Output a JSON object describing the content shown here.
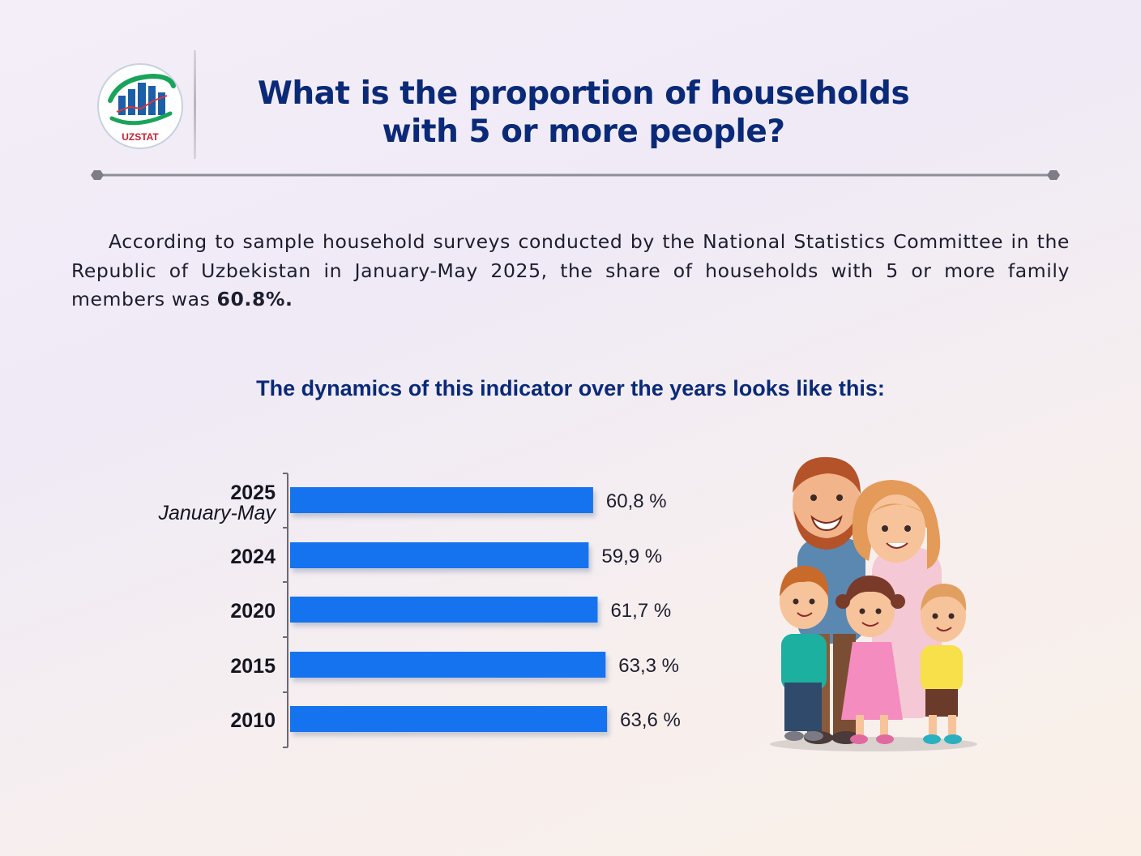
{
  "logo": {
    "text": "UZSTAT",
    "icon": "uzstat-logo-icon"
  },
  "title": {
    "line1": "What is the proportion of households",
    "line2": "with 5 or more people?"
  },
  "intro": {
    "text": "According to sample household surveys conducted by the National Statistics Committee in the Republic of Uzbekistan in January-May 2025, the share of households with 5 or more family members was ",
    "highlight": "60.8%."
  },
  "subheading": "The dynamics of this indicator over the years looks like this:",
  "colors": {
    "accent": "#0a2a78",
    "bar": "#1273ef"
  },
  "illustration": {
    "icon": "family-illustration-icon"
  },
  "chart_data": {
    "type": "bar",
    "orientation": "horizontal",
    "categories": [
      "2025",
      "2024",
      "2020",
      "2015",
      "2010"
    ],
    "category_sublabels": [
      "January-May",
      "",
      "",
      "",
      ""
    ],
    "values": [
      60.8,
      59.9,
      61.7,
      63.3,
      63.6
    ],
    "value_labels": [
      "60,8 %",
      "59,9 %",
      "61,7 %",
      "63,3 %",
      "63,6 %"
    ],
    "title": "",
    "xlabel": "",
    "ylabel": "",
    "grid": false,
    "legend": "none"
  }
}
